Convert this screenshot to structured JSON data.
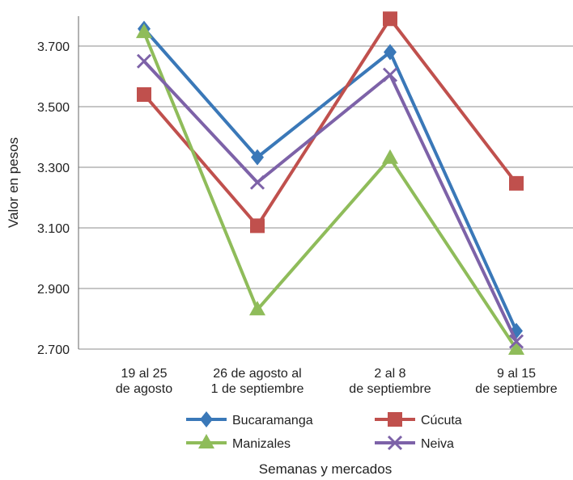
{
  "chart_data": {
    "type": "line",
    "xlabel": "Semanas y mercados",
    "ylabel": "Valor en pesos",
    "ylim": [
      2700,
      3800
    ],
    "yticks": [
      "2.700",
      "2.900",
      "3.100",
      "3.300",
      "3.500",
      "3.700"
    ],
    "ytick_values": [
      2700,
      2900,
      3100,
      3300,
      3500,
      3700
    ],
    "grid": "horizontal",
    "legend_position": "bottom",
    "categories": [
      [
        "19 al 25",
        "de agosto"
      ],
      [
        "26 de agosto al",
        "1 de septiembre"
      ],
      [
        "2 al 8",
        "de septiembre"
      ],
      [
        "9 al 15",
        "de septiembre"
      ]
    ],
    "series": [
      {
        "name": "Bucaramanga",
        "color": "#3a78b8",
        "marker": "diamond",
        "values": [
          3757,
          3333,
          3680,
          2760
        ]
      },
      {
        "name": "Cúcuta",
        "color": "#c0504d",
        "marker": "square",
        "values": [
          3540,
          3107,
          3790,
          3247
        ]
      },
      {
        "name": "Manizales",
        "color": "#8fbc5a",
        "marker": "triangle",
        "values": [
          3745,
          2830,
          3330,
          2700
        ]
      },
      {
        "name": "Neiva",
        "color": "#7d62a8",
        "marker": "x",
        "values": [
          3650,
          3250,
          3605,
          2725
        ]
      }
    ]
  }
}
